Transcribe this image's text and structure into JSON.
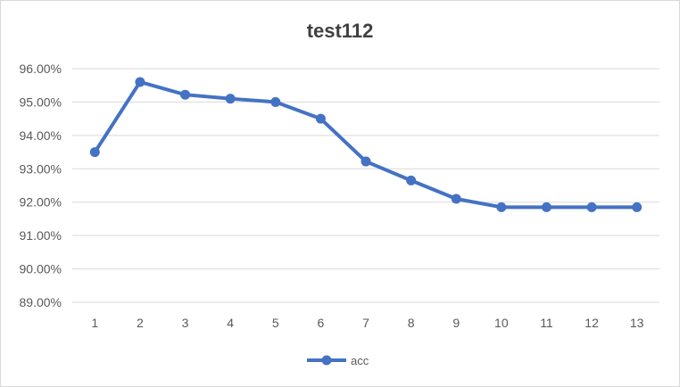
{
  "chart_data": {
    "type": "line",
    "title": "test112",
    "xlabel": "",
    "ylabel": "",
    "categories": [
      "1",
      "2",
      "3",
      "4",
      "5",
      "6",
      "7",
      "8",
      "9",
      "10",
      "11",
      "12",
      "13"
    ],
    "series": [
      {
        "name": "acc",
        "color": "#4472c4",
        "marker": "circle",
        "values": [
          0.935,
          0.956,
          0.9522,
          0.951,
          0.95,
          0.945,
          0.9322,
          0.9265,
          0.921,
          0.9185,
          0.9185,
          0.9185,
          0.9185
        ]
      }
    ],
    "ylim": [
      0.89,
      0.96
    ],
    "yticks": [
      0.89,
      0.9,
      0.91,
      0.92,
      0.93,
      0.94,
      0.95,
      0.96
    ],
    "ytick_labels": [
      "89.00%",
      "90.00%",
      "91.00%",
      "92.00%",
      "93.00%",
      "94.00%",
      "95.00%",
      "96.00%"
    ],
    "grid": "horizontal",
    "legend_position": "bottom"
  }
}
